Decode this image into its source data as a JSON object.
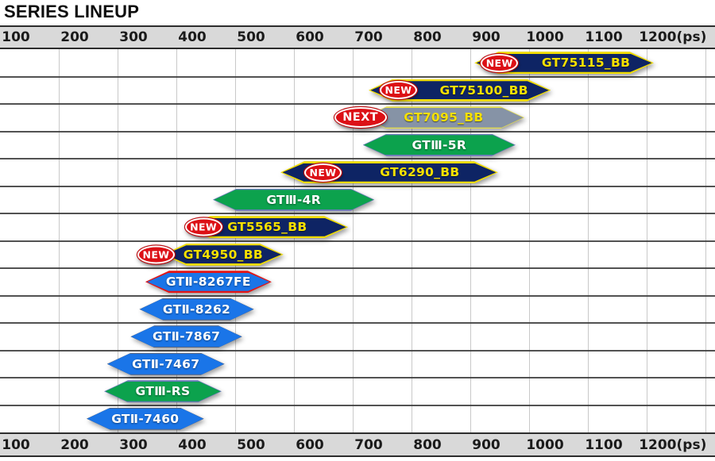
{
  "title": "SERIES LINEUP",
  "chart_data": {
    "type": "bar",
    "orientation": "horizontal-range",
    "title": "SERIES LINEUP",
    "x_unit": "ps",
    "x_range": [
      100,
      1200
    ],
    "grid": true,
    "axis_ticks": [
      {
        "label": "100",
        "ps": 100
      },
      {
        "label": "200",
        "ps": 200
      },
      {
        "label": "300",
        "ps": 300
      },
      {
        "label": "400",
        "ps": 400
      },
      {
        "label": "500",
        "ps": 500
      },
      {
        "label": "600",
        "ps": 600
      },
      {
        "label": "700",
        "ps": 700
      },
      {
        "label": "800",
        "ps": 800
      },
      {
        "label": "900",
        "ps": 900
      },
      {
        "label": "1000",
        "ps": 1000
      },
      {
        "label": "1100",
        "ps": 1100
      },
      {
        "label": "1200(ps)",
        "ps": 1200
      }
    ],
    "items": [
      {
        "name": "GT75115_BB",
        "start": 880,
        "end": 1185,
        "style": "navy",
        "badge": "NEW",
        "badge_offset": 8
      },
      {
        "name": "GT75100_BB",
        "start": 700,
        "end": 1010,
        "style": "navy",
        "badge": "NEW",
        "badge_offset": 14
      },
      {
        "name": "GT7095_BB",
        "start": 690,
        "end": 965,
        "style": "gray",
        "badge": "NEXT",
        "badge_offset": -36
      },
      {
        "name": "GTⅢ-5R",
        "start": 690,
        "end": 950,
        "style": "green",
        "badge": null
      },
      {
        "name": "GT6290_BB",
        "start": 550,
        "end": 920,
        "style": "navy",
        "badge": "NEW",
        "badge_offset": 30
      },
      {
        "name": "GTⅢ-4R",
        "start": 435,
        "end": 710,
        "style": "green",
        "badge": null
      },
      {
        "name": "GT5565_BB",
        "start": 390,
        "end": 665,
        "style": "navy",
        "badge": "NEW",
        "badge_offset": -2
      },
      {
        "name": "GT4950_BB",
        "start": 350,
        "end": 555,
        "style": "navy",
        "badge": "NEW",
        "badge_offset": -32
      },
      {
        "name": "GTⅡ-8267FE",
        "start": 320,
        "end": 535,
        "style": "blue_red",
        "badge": null
      },
      {
        "name": "GTⅡ-8262",
        "start": 310,
        "end": 505,
        "style": "blue",
        "badge": null
      },
      {
        "name": "GTⅡ-7867",
        "start": 295,
        "end": 485,
        "style": "blue",
        "badge": null
      },
      {
        "name": "GTⅡ-7467",
        "start": 255,
        "end": 455,
        "style": "blue",
        "badge": null
      },
      {
        "name": "GTⅢ-RS",
        "start": 250,
        "end": 450,
        "style": "green",
        "badge": null
      },
      {
        "name": "GTⅡ-7460",
        "start": 220,
        "end": 420,
        "style": "blue",
        "badge": null
      }
    ],
    "styles": {
      "navy": {
        "fill": "#0e2464",
        "border": "#f0dc00",
        "text": "#f5e000",
        "border_w": 2.5,
        "text_class": "yellow"
      },
      "gray": {
        "fill": "#8693a6",
        "border": "#e8e04a",
        "text": "#f5e000",
        "border_w": 1.5,
        "text_class": "yellow"
      },
      "green": {
        "fill": "#0ca24d",
        "border": "#6a79bb",
        "text": "#ffffff",
        "border_w": 1.5,
        "text_class": "light"
      },
      "blue": {
        "fill": "#1a75e8",
        "border": "#4f6386",
        "text": "#ffffff",
        "border_w": 1.0,
        "text_class": "light"
      },
      "blue_red": {
        "fill": "#1a75e8",
        "border": "#e41414",
        "text": "#ffffff",
        "border_w": 2.5,
        "text_class": "light"
      }
    },
    "badge_colors": {
      "fill": "#dc1016",
      "ring": "#ffffff",
      "text": "#ffffff"
    },
    "axis_bar_color": "#d9d9d9",
    "gridline_color": "#c9c9c9",
    "row_divider_color": "#3a3a3a"
  }
}
